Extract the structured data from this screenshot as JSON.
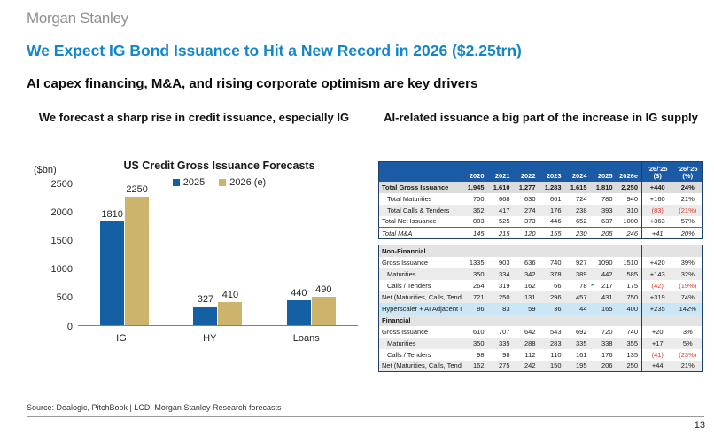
{
  "header": {
    "logo": "Morgan Stanley",
    "title": "We Expect IG Bond Issuance to Hit a New Record in 2026 ($2.25trn)",
    "subtitle": "AI capex financing, M&A, and rising corporate optimism are key drivers"
  },
  "left_panel": {
    "title": "We forecast a sharp rise in credit issuance, especially IG"
  },
  "right_panel": {
    "title": "AI-related issuance a big part of the increase in IG supply"
  },
  "colors": {
    "title_blue": "#1286c8",
    "bar_2025": "#155fa5",
    "bar_2026": "#ccb46c",
    "table_header_bg": "#1b5ba6",
    "row_shaded_bg": "#ebebeb",
    "row_total_bg": "#dcdcdc",
    "section_bg": "#e3e3e3",
    "highlight_row_bg": "#c9e7f6",
    "negative_red": "#e0392e"
  },
  "chart_data": {
    "type": "bar",
    "title": "US Credit Gross Issuance Forecasts",
    "unit_label": "($bn)",
    "categories": [
      "IG",
      "HY",
      "Loans"
    ],
    "series": [
      {
        "name": "2025",
        "color": "#155fa5",
        "values": [
          1810,
          327,
          440
        ]
      },
      {
        "name": "2026 (e)",
        "color": "#ccb46c",
        "values": [
          2250,
          410,
          490
        ]
      }
    ],
    "ylim": [
      0,
      2500
    ],
    "yticks": [
      0,
      500,
      1000,
      1500,
      2000,
      2500
    ],
    "grid": false,
    "legend_position": "top-center"
  },
  "table": {
    "year_columns": [
      "2020",
      "2021",
      "2022",
      "2023",
      "2024",
      "2025",
      "2026e"
    ],
    "delta_columns": [
      {
        "line1": "'26/'25",
        "line2": "($)"
      },
      {
        "line1": "'26/'25",
        "line2": "(%)"
      }
    ],
    "block1": [
      {
        "label": "Total Gross Issuance",
        "style": "bold",
        "shaded": "total",
        "values": [
          "1,945",
          "1,610",
          "1,277",
          "1,283",
          "1,615",
          "1,810",
          "2,250",
          "+440",
          "24%"
        ]
      },
      {
        "label": "Total Maturities",
        "indent": 1,
        "values": [
          "700",
          "668",
          "630",
          "661",
          "724",
          "780",
          "940",
          "+160",
          "21%"
        ]
      },
      {
        "label": "Total Calls & Tenders",
        "indent": 1,
        "shaded": "alt",
        "values": [
          "362",
          "417",
          "274",
          "176",
          "238",
          "393",
          "310",
          "(83)",
          "(21%)"
        ]
      },
      {
        "label": "Total Net Issuance",
        "values": [
          "883",
          "525",
          "373",
          "446",
          "652",
          "637",
          "1000",
          "+363",
          "57%"
        ]
      },
      {
        "label": "Total M&A",
        "style": "italic",
        "topline": true,
        "values": [
          "145",
          "215",
          "120",
          "155",
          "230",
          "205",
          "246",
          "+41",
          "20%"
        ]
      }
    ],
    "block2": [
      {
        "label": "Non-Financial",
        "type": "section"
      },
      {
        "label": "Gross Issuance",
        "values": [
          "1335",
          "903",
          "636",
          "740",
          "927",
          "1090",
          "1510",
          "+420",
          "39%"
        ]
      },
      {
        "label": "Maturities",
        "indent": 1,
        "shaded": "alt",
        "values": [
          "350",
          "334",
          "342",
          "378",
          "389",
          "442",
          "585",
          "+143",
          "32%"
        ]
      },
      {
        "label": "Calls / Tenders",
        "indent": 1,
        "marker_col": 5,
        "values": [
          "264",
          "319",
          "162",
          "66",
          "78",
          "217",
          "175",
          "(42)",
          "(19%)"
        ]
      },
      {
        "label": "Net (Maturities, Calls, Tenders)",
        "shaded": "alt",
        "values": [
          "721",
          "250",
          "131",
          "296",
          "457",
          "431",
          "750",
          "+319",
          "74%"
        ]
      },
      {
        "label": "Hyperscaler + AI Adjacent Issuar",
        "type": "highlight",
        "values": [
          "86",
          "83",
          "59",
          "36",
          "44",
          "165",
          "400",
          "+235",
          "142%"
        ]
      },
      {
        "label": "Financial",
        "type": "section"
      },
      {
        "label": "Gross Issuance",
        "values": [
          "610",
          "707",
          "642",
          "543",
          "692",
          "720",
          "740",
          "+20",
          "3%"
        ]
      },
      {
        "label": "Maturities",
        "indent": 1,
        "shaded": "alt",
        "values": [
          "350",
          "335",
          "288",
          "283",
          "335",
          "338",
          "355",
          "+17",
          "5%"
        ]
      },
      {
        "label": "Calls / Tenders",
        "indent": 1,
        "values": [
          "98",
          "98",
          "112",
          "110",
          "161",
          "176",
          "135",
          "(41)",
          "(23%)"
        ]
      },
      {
        "label": "Net (Maturities, Calls, Tenders)",
        "shaded": "alt",
        "values": [
          "162",
          "275",
          "242",
          "150",
          "195",
          "206",
          "250",
          "+44",
          "21%"
        ]
      }
    ]
  },
  "footer": {
    "source": "Source: Dealogic, PitchBook | LCD, Morgan Stanley Research forecasts"
  },
  "page": {
    "number": "13"
  }
}
